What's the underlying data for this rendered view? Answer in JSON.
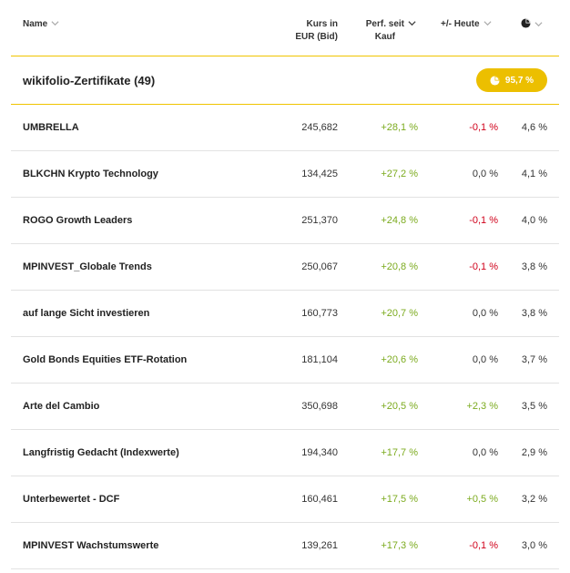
{
  "header": {
    "name": "Name",
    "kurs_line1": "Kurs in",
    "kurs_line2": "EUR (Bid)",
    "perf_line1": "Perf. seit",
    "perf_line2": "Kauf",
    "heute": "+/- Heute"
  },
  "group": {
    "title": "wikifolio-Zertifikate (49)",
    "badge": "95,7 %"
  },
  "colors": {
    "accent": "#ecbf00",
    "positive": "#7cab1f",
    "negative": "#d0021b"
  },
  "rows": [
    {
      "name": "UMBRELLA",
      "kurs": "245,682",
      "perf": "+28,1 %",
      "heute": "-0,1 %",
      "heute_sign": "neg",
      "anteil": "4,6 %"
    },
    {
      "name": "BLKCHN Krypto Technology",
      "kurs": "134,425",
      "perf": "+27,2 %",
      "heute": "0,0 %",
      "heute_sign": "neu",
      "anteil": "4,1 %"
    },
    {
      "name": "ROGO Growth Leaders",
      "kurs": "251,370",
      "perf": "+24,8 %",
      "heute": "-0,1 %",
      "heute_sign": "neg",
      "anteil": "4,0 %"
    },
    {
      "name": "MPINVEST_Globale Trends",
      "kurs": "250,067",
      "perf": "+20,8 %",
      "heute": "-0,1 %",
      "heute_sign": "neg",
      "anteil": "3,8 %"
    },
    {
      "name": "auf lange Sicht investieren",
      "kurs": "160,773",
      "perf": "+20,7 %",
      "heute": "0,0 %",
      "heute_sign": "neu",
      "anteil": "3,8 %"
    },
    {
      "name": "Gold Bonds Equities ETF-Rotation",
      "kurs": "181,104",
      "perf": "+20,6 %",
      "heute": "0,0 %",
      "heute_sign": "neu",
      "anteil": "3,7 %"
    },
    {
      "name": "Arte del Cambio",
      "kurs": "350,698",
      "perf": "+20,5 %",
      "heute": "+2,3 %",
      "heute_sign": "pos",
      "anteil": "3,5 %"
    },
    {
      "name": "Langfristig Gedacht (Indexwerte)",
      "kurs": "194,340",
      "perf": "+17,7 %",
      "heute": "0,0 %",
      "heute_sign": "neu",
      "anteil": "2,9 %"
    },
    {
      "name": "Unterbewertet - DCF",
      "kurs": "160,461",
      "perf": "+17,5 %",
      "heute": "+0,5 %",
      "heute_sign": "pos",
      "anteil": "3,2 %"
    },
    {
      "name": "MPINVEST Wachstumswerte",
      "kurs": "139,261",
      "perf": "+17,3 %",
      "heute": "-0,1 %",
      "heute_sign": "neg",
      "anteil": "3,0 %"
    }
  ]
}
